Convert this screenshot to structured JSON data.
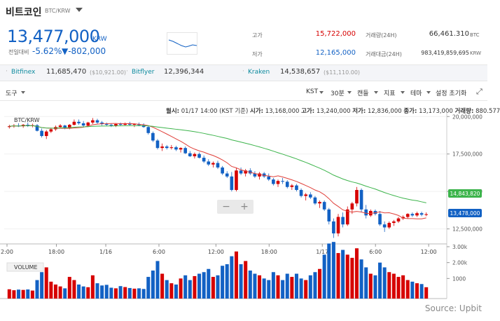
{
  "header": {
    "title": "비트코인",
    "pair": "BTC/KRW",
    "price": "13,477,000",
    "price_unit": "KRW",
    "change_label": "전일대비",
    "change_pct": "-5.62%",
    "change_val": "▼-802,000"
  },
  "stats": {
    "high_label": "고가",
    "high": "15,722,000",
    "low_label": "저가",
    "low": "12,165,000",
    "vol_label": "거래량(24H)",
    "vol": "66,461.310",
    "vol_unit": "BTC",
    "amount_label": "거래대금(24H)",
    "amount": "983,419,859,695",
    "amount_unit": "KRW"
  },
  "exchanges": [
    {
      "name": "Bitfinex",
      "value": "11,685,470",
      "sub": "($10,921.00)"
    },
    {
      "name": "Bitflyer",
      "value": "12,396,344",
      "sub": ""
    },
    {
      "name": "Kraken",
      "value": "14,538,657",
      "sub": "($11,110.00)"
    }
  ],
  "toolbar": {
    "tools": "도구",
    "timezone": "KST",
    "interval": "30분",
    "candle": "캔들",
    "indicator": "지표",
    "theme": "테마",
    "reset": "설정 초기화"
  },
  "ohlc": {
    "period_label": "월시:",
    "period": "01/17 14:00 (KST 기준)",
    "open_label": "시가:",
    "open": "13,168,000",
    "high_label": "고가:",
    "high": "13,240,000",
    "low_label": "저가:",
    "low": "12,836,000",
    "close_label": "종가:",
    "close": "13,173,000",
    "vol_label": "거래량:",
    "vol": "880.577"
  },
  "chart_labels": {
    "symbol": "BTC/KRW",
    "volume": "VOLUME",
    "source": "Source: Upbit",
    "ma_badge_green": "14,843,820",
    "ma_badge_blue": "13,478,000"
  },
  "colors": {
    "up": "#d60000",
    "down": "#1261c4",
    "ma_short": "#e0403a",
    "ma_long": "#3cb44b"
  },
  "chart_data": {
    "type": "candlestick",
    "x_ticks": [
      "2:00",
      "18:00",
      "1/16",
      "6:00",
      "12:00",
      "18:00",
      "1/17",
      "6:00",
      "12:00"
    ],
    "y_ticks": [
      "20,000,000",
      "17,500,000",
      "15,000,000",
      "12,500,000"
    ],
    "y_range": [
      11500000,
      20200000
    ],
    "volume_ticks": [
      "3.00k",
      "2.00k",
      "1000"
    ],
    "volume_range": [
      0,
      3000
    ],
    "candles": [
      [
        19300000,
        19450000,
        19200000,
        19350000
      ],
      [
        19350000,
        19500000,
        19250000,
        19400000
      ],
      [
        19400000,
        19550000,
        19300000,
        19350000
      ],
      [
        19350000,
        19500000,
        19250000,
        19450000
      ],
      [
        19450000,
        19600000,
        19300000,
        19380000
      ],
      [
        19380000,
        19520000,
        19280000,
        19420000
      ],
      [
        19420000,
        19500000,
        19000000,
        19050000
      ],
      [
        19050000,
        19200000,
        18600000,
        18700000
      ],
      [
        18700000,
        19100000,
        18500000,
        19000000
      ],
      [
        19000000,
        19250000,
        18900000,
        19150000
      ],
      [
        19150000,
        19400000,
        19050000,
        19300000
      ],
      [
        19300000,
        19500000,
        19200000,
        19400000
      ],
      [
        19400000,
        19450000,
        19150000,
        19250000
      ],
      [
        19250000,
        19500000,
        19150000,
        19450000
      ],
      [
        19450000,
        19800000,
        19400000,
        19650000
      ],
      [
        19650000,
        19800000,
        19450000,
        19550000
      ],
      [
        19550000,
        19700000,
        19300000,
        19400000
      ],
      [
        19400000,
        19650000,
        19300000,
        19600000
      ],
      [
        19600000,
        19900000,
        19500000,
        19750000
      ],
      [
        19750000,
        19850000,
        19500000,
        19600000
      ],
      [
        19600000,
        19700000,
        19400000,
        19500000
      ],
      [
        19500000,
        19600000,
        19350000,
        19450000
      ],
      [
        19450000,
        19550000,
        19300000,
        19400000
      ],
      [
        19400000,
        19550000,
        19300000,
        19500000
      ],
      [
        19500000,
        19600000,
        19350000,
        19450000
      ],
      [
        19450000,
        19600000,
        19400000,
        19550000
      ],
      [
        19550000,
        19650000,
        19400000,
        19450000
      ],
      [
        19450000,
        19550000,
        19300000,
        19500000
      ],
      [
        19500000,
        19600000,
        19350000,
        19420000
      ],
      [
        19420000,
        19550000,
        19250000,
        19300000
      ],
      [
        19300000,
        19400000,
        18800000,
        18900000
      ],
      [
        18900000,
        19000000,
        18300000,
        18400000
      ],
      [
        18400000,
        18500000,
        17800000,
        17900000
      ],
      [
        17900000,
        18200000,
        17700000,
        18000000
      ],
      [
        18000000,
        18100000,
        17800000,
        17900000
      ],
      [
        17900000,
        18100000,
        17800000,
        17950000
      ],
      [
        17950000,
        18050000,
        17700000,
        17800000
      ],
      [
        17800000,
        17950000,
        17600000,
        17900000
      ],
      [
        17900000,
        18000000,
        17500000,
        17550000
      ],
      [
        17550000,
        17700000,
        17300000,
        17350000
      ],
      [
        17350000,
        17600000,
        17200000,
        17500000
      ],
      [
        17500000,
        17600000,
        17200000,
        17250000
      ],
      [
        17250000,
        17400000,
        16900000,
        17000000
      ],
      [
        17000000,
        17150000,
        16700000,
        16800000
      ],
      [
        16800000,
        17000000,
        16600000,
        16900000
      ],
      [
        16900000,
        17050000,
        16500000,
        16600000
      ],
      [
        16600000,
        16700000,
        16100000,
        16200000
      ],
      [
        16200000,
        16350000,
        15900000,
        16000000
      ],
      [
        16000000,
        16300000,
        15000000,
        15100000
      ],
      [
        15100000,
        16600000,
        15000000,
        16400000
      ],
      [
        16400000,
        16600000,
        16100000,
        16200000
      ],
      [
        16200000,
        16500000,
        16000000,
        16400000
      ],
      [
        16400000,
        16550000,
        16100000,
        16200000
      ],
      [
        16200000,
        16350000,
        15900000,
        16000000
      ],
      [
        16000000,
        16300000,
        15800000,
        16200000
      ],
      [
        16200000,
        16300000,
        15900000,
        16000000
      ],
      [
        16000000,
        16200000,
        15700000,
        15800000
      ],
      [
        15800000,
        15900000,
        15400000,
        15500000
      ],
      [
        15500000,
        15800000,
        15300000,
        15700000
      ],
      [
        15700000,
        15900000,
        15500000,
        15650000
      ],
      [
        15650000,
        15750000,
        15200000,
        15300000
      ],
      [
        15300000,
        15500000,
        15100000,
        15400000
      ],
      [
        15400000,
        15500000,
        15000000,
        15100000
      ],
      [
        15100000,
        15200000,
        14600000,
        14700000
      ],
      [
        14700000,
        14900000,
        14400000,
        14800000
      ],
      [
        14800000,
        14950000,
        14500000,
        14600000
      ],
      [
        14600000,
        14700000,
        14100000,
        14200000
      ],
      [
        14200000,
        14400000,
        13900000,
        14300000
      ],
      [
        14300000,
        14400000,
        13700000,
        13800000
      ],
      [
        13800000,
        13900000,
        12800000,
        13000000
      ],
      [
        13000000,
        13200000,
        11900000,
        12200000
      ],
      [
        12200000,
        13500000,
        12000000,
        13300000
      ],
      [
        13300000,
        13600000,
        12600000,
        12800000
      ],
      [
        12800000,
        14000000,
        12700000,
        13800000
      ],
      [
        13800000,
        14300000,
        13500000,
        14200000
      ],
      [
        14200000,
        15300000,
        14000000,
        15100000
      ],
      [
        15100000,
        15200000,
        13600000,
        13800000
      ],
      [
        13800000,
        14100000,
        13200000,
        13400000
      ],
      [
        13400000,
        13800000,
        13300000,
        13700000
      ],
      [
        13700000,
        13800000,
        13400000,
        13500000
      ],
      [
        13500000,
        13700000,
        12700000,
        12800000
      ],
      [
        12800000,
        13000000,
        12300000,
        12600000
      ],
      [
        12600000,
        13000000,
        12500000,
        12900000
      ],
      [
        12900000,
        13100000,
        12700000,
        13000000
      ],
      [
        13000000,
        13300000,
        12900000,
        13200000
      ],
      [
        13200000,
        13400000,
        13100000,
        13300000
      ],
      [
        13300000,
        13550000,
        13200000,
        13500000
      ],
      [
        13500000,
        13600000,
        13300000,
        13400000
      ],
      [
        13400000,
        13650000,
        13300000,
        13550000
      ],
      [
        13550000,
        13650000,
        13350000,
        13450000
      ],
      [
        13450000,
        13600000,
        13350000,
        13480000
      ]
    ],
    "volumes": [
      320,
      260,
      300,
      280,
      310,
      240,
      900,
      1400,
      1700,
      800,
      620,
      500,
      380,
      1100,
      900,
      620,
      500,
      450,
      1200,
      700,
      560,
      600,
      420,
      380,
      520,
      460,
      400,
      360,
      380,
      340,
      1100,
      1500,
      2100,
      1300,
      900,
      700,
      620,
      1000,
      1200,
      900,
      1150,
      1300,
      1400,
      1600,
      1100,
      1200,
      1800,
      1900,
      2400,
      2700,
      1900,
      2100,
      1500,
      1300,
      1200,
      1000,
      900,
      1400,
      1200,
      900,
      1300,
      1100,
      1300,
      1000,
      900,
      1200,
      1400,
      1600,
      2500,
      3200,
      3300,
      2600,
      2800,
      2500,
      2300,
      2900,
      2200,
      1700,
      1300,
      1200,
      2000,
      1700,
      1400,
      1300,
      1100,
      1200,
      900,
      800,
      700,
      650,
      450
    ]
  }
}
